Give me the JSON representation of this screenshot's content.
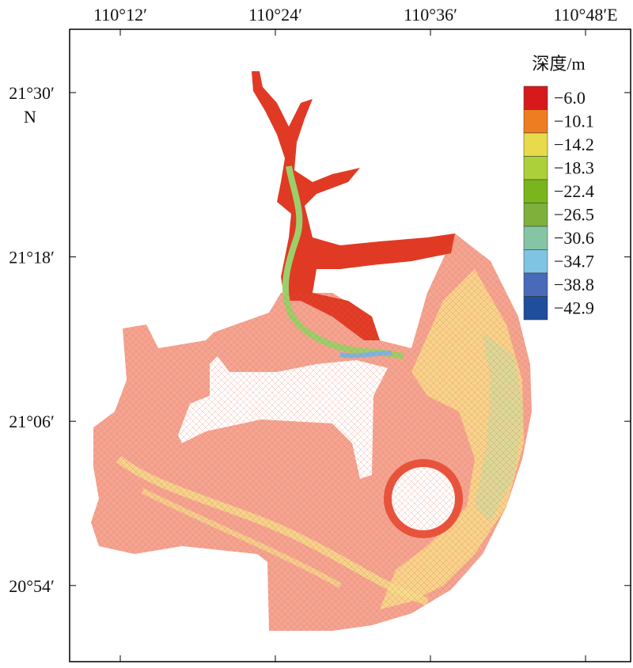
{
  "map": {
    "x_ticks": [
      "110°12′",
      "110°24′",
      "110°36′",
      "110°48′E"
    ],
    "y_ticks": [
      "21°30′",
      "21°18′",
      "21°06′",
      "20°54′"
    ],
    "y_unit": "N",
    "legend": {
      "title": "深度/m",
      "items": [
        {
          "label": "−6.0",
          "color": "#d7191c"
        },
        {
          "label": "−10.1",
          "color": "#ee7d22"
        },
        {
          "label": "−14.2",
          "color": "#e8da4a"
        },
        {
          "label": "−18.3",
          "color": "#acd03a"
        },
        {
          "label": "−22.4",
          "color": "#7ab51d"
        },
        {
          "label": "−26.5",
          "color": "#7fb03c"
        },
        {
          "label": "−30.6",
          "color": "#86c4a6"
        },
        {
          "label": "−34.7",
          "color": "#80c4e4"
        },
        {
          "label": "−38.8",
          "color": "#4a69b8"
        },
        {
          "label": "−42.9",
          "color": "#1f4e9c"
        }
      ]
    }
  }
}
